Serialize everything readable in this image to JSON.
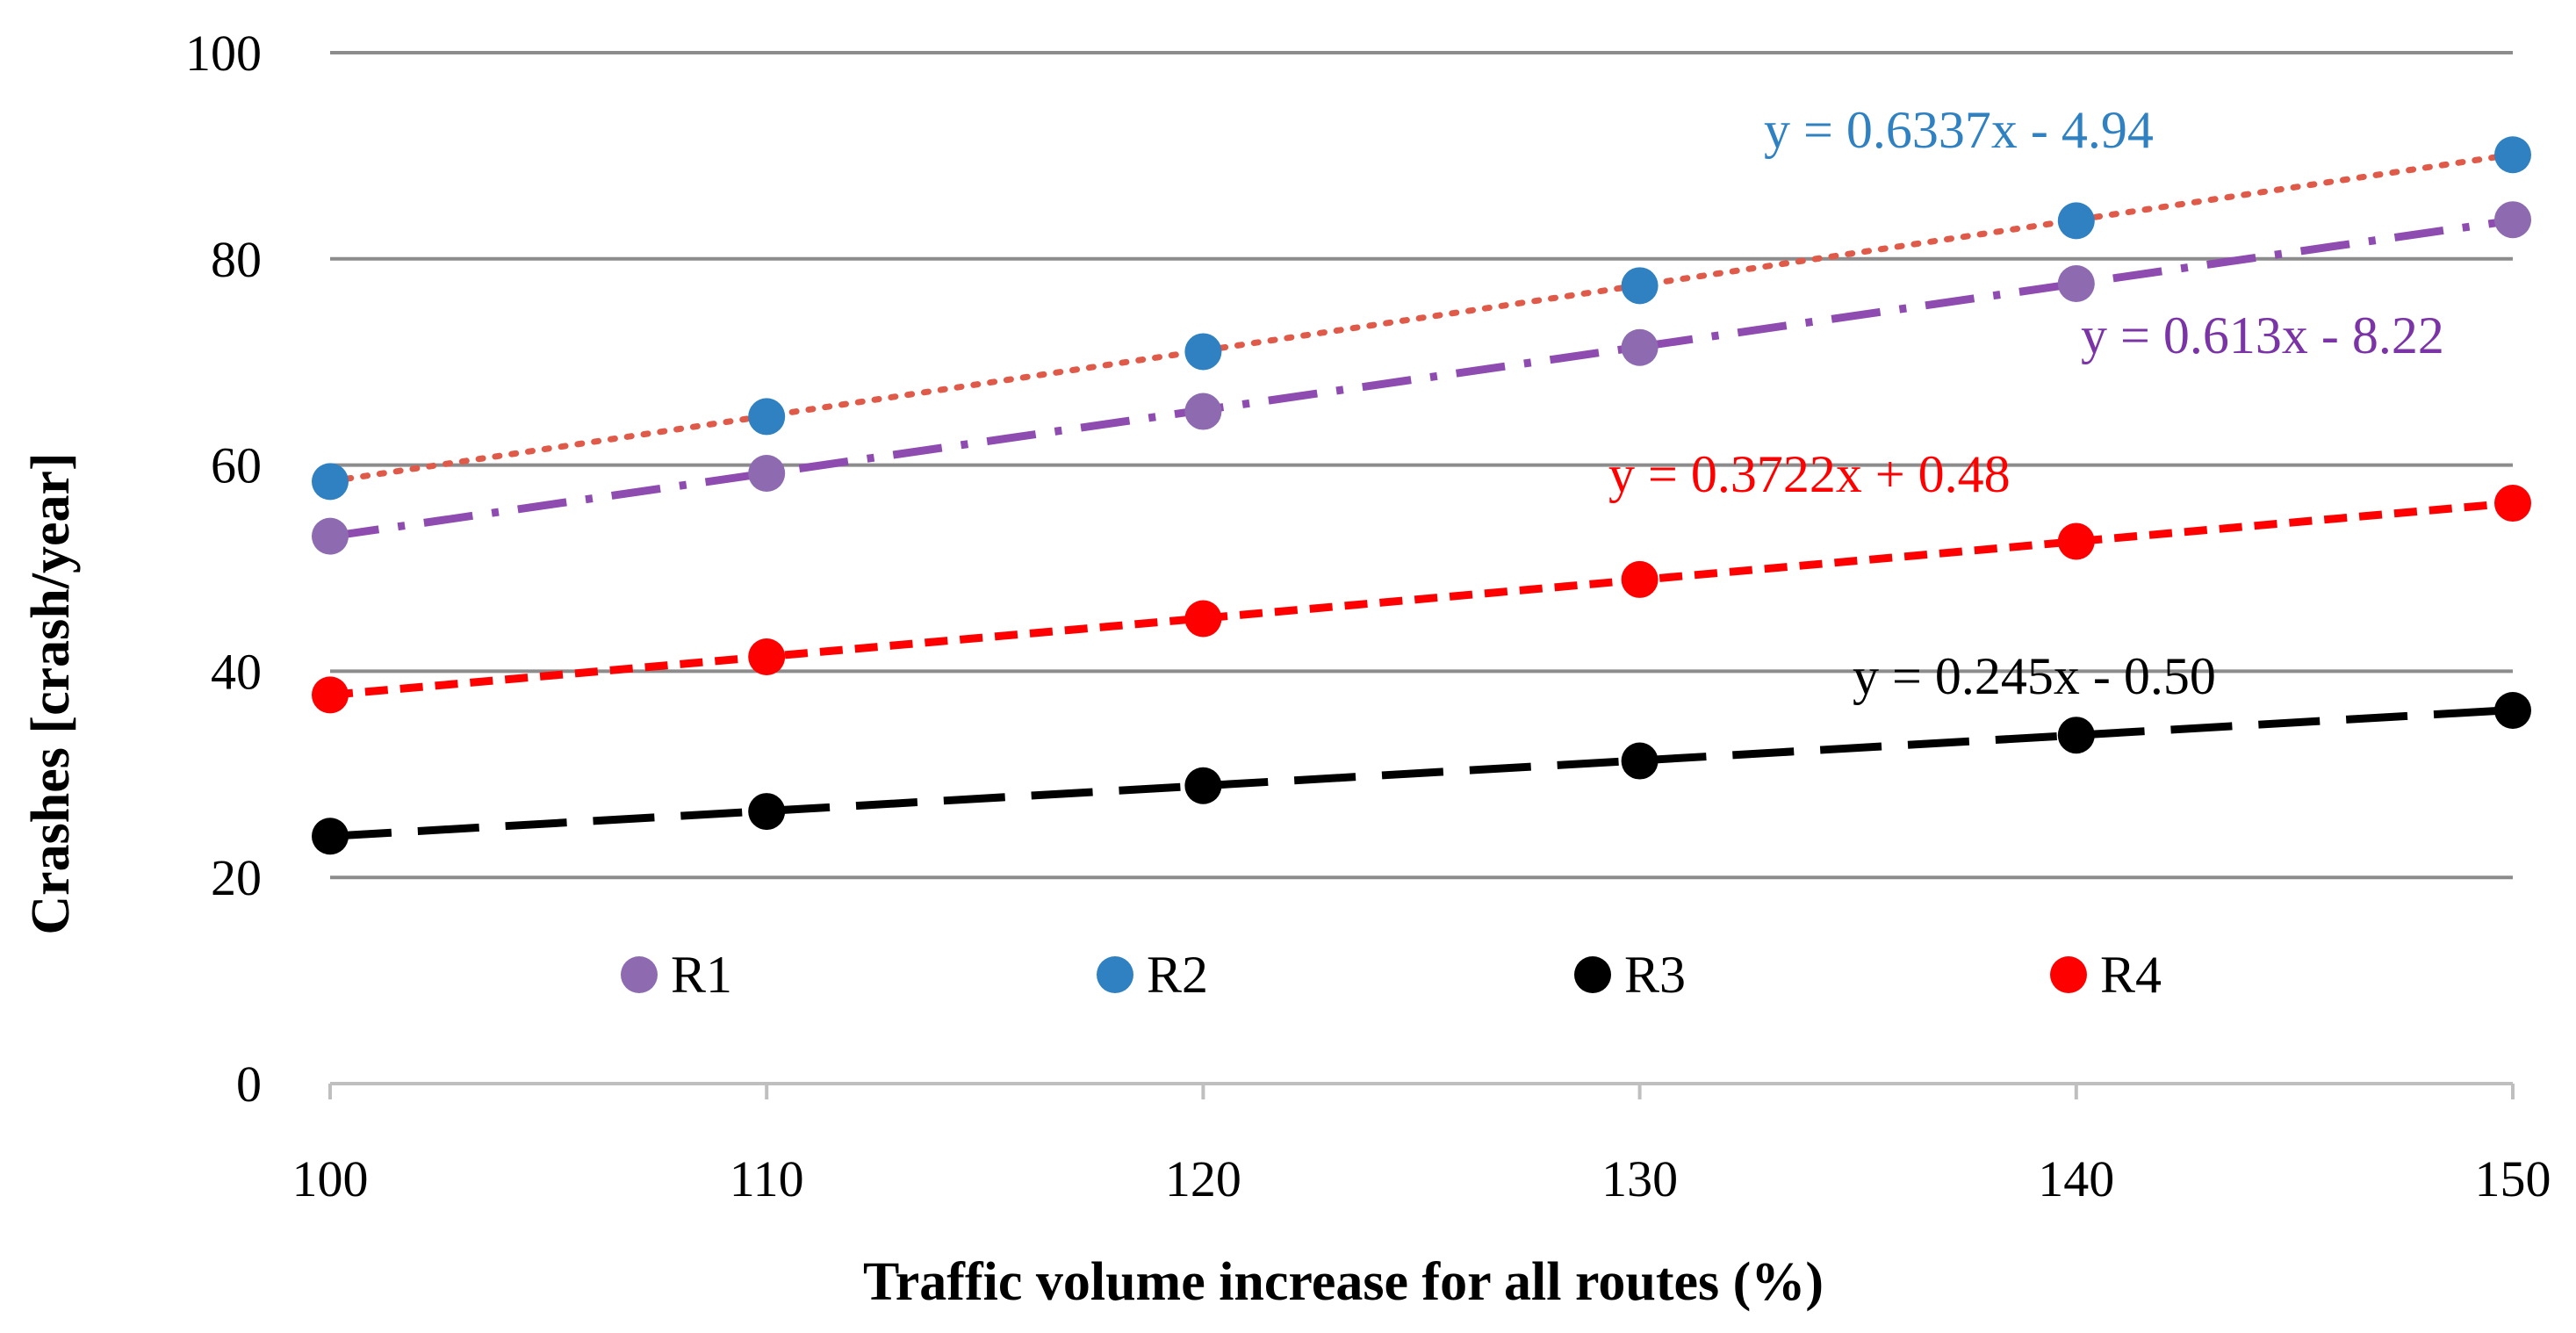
{
  "chart_data": {
    "type": "scatter",
    "title": "",
    "xlabel": "Traffic volume increase for all routes (%)",
    "ylabel": "Crashes [crash/year]",
    "x": [
      100,
      110,
      120,
      130,
      140,
      150
    ],
    "xlim": [
      100,
      150
    ],
    "ylim": [
      0,
      100
    ],
    "x_ticks": [
      "100",
      "110",
      "120",
      "130",
      "140",
      "150"
    ],
    "y_ticks": [
      "0",
      "20",
      "40",
      "60",
      "80",
      "100"
    ],
    "grid": true,
    "legend_position": "bottom-inside",
    "series": [
      {
        "name": "R1",
        "color": "#8e6bb0",
        "values": [
          53.1,
          59.2,
          65.2,
          71.4,
          77.6,
          83.8
        ],
        "trendline": {
          "equation": "y = 0.613x - 8.22",
          "slope": 0.613,
          "intercept": -8.22,
          "style": "dash-dot",
          "color": "#8e4bb0"
        }
      },
      {
        "name": "R2",
        "color": "#2f81c1",
        "values": [
          58.4,
          64.7,
          71.0,
          77.4,
          83.7,
          90.1
        ],
        "trendline": {
          "equation": "y = 0.6337x - 4.94",
          "slope": 0.6337,
          "intercept": -4.94,
          "style": "dotted",
          "color": "#e05a4a"
        }
      },
      {
        "name": "R3",
        "color": "#000000",
        "values": [
          24.0,
          26.4,
          28.9,
          31.3,
          33.8,
          36.2
        ],
        "trendline": {
          "equation": "y = 0.245x - 0.50",
          "slope": 0.245,
          "intercept": -0.5,
          "style": "long-dash",
          "color": "#000000"
        }
      },
      {
        "name": "R4",
        "color": "#ff0000",
        "values": [
          37.7,
          41.4,
          45.1,
          48.9,
          52.6,
          56.3
        ],
        "trendline": {
          "equation": "y = 0.3722x + 0.48",
          "slope": 0.3722,
          "intercept": 0.48,
          "style": "dashed",
          "color": "#ff0000"
        }
      }
    ],
    "equation_labels": [
      {
        "series": "R2",
        "text": "y = 0.6337x - 4.94",
        "color": "#2f81c1"
      },
      {
        "series": "R1",
        "text": "y = 0.613x - 8.22",
        "color": "#7a34a6"
      },
      {
        "series": "R4",
        "text": "y = 0.3722x + 0.48",
        "color": "#ff0000"
      },
      {
        "series": "R3",
        "text": "y = 0.245x - 0.50",
        "color": "#000000"
      }
    ]
  }
}
